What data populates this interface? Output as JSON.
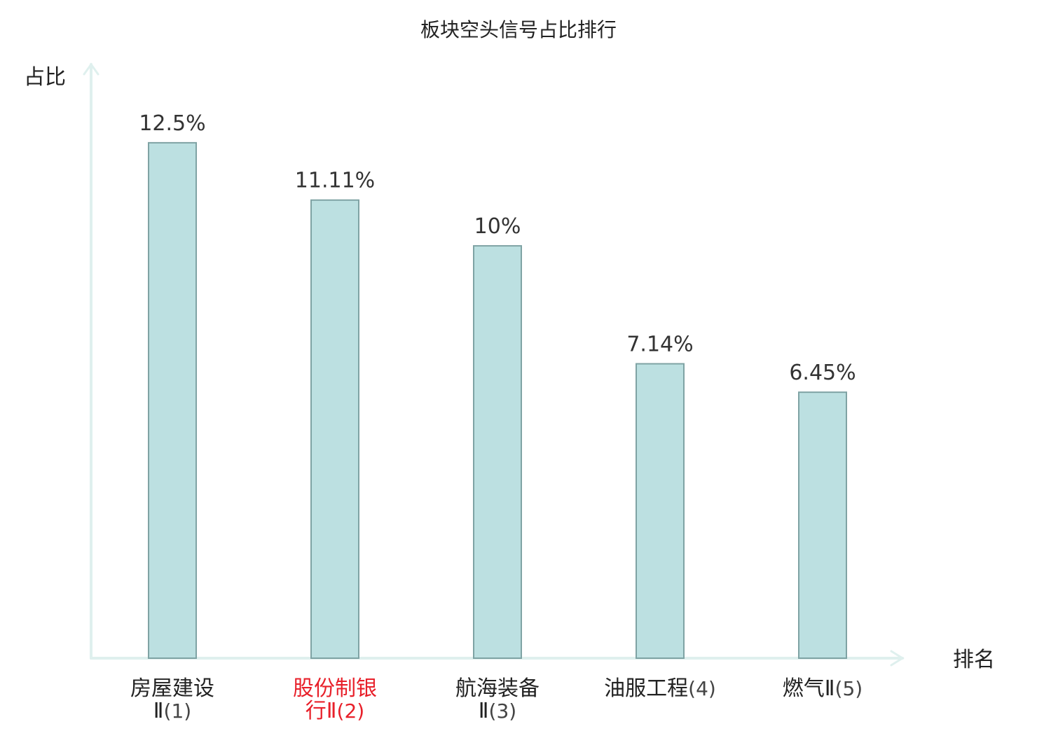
{
  "chart_data": {
    "type": "bar",
    "title": "板块空头信号占比排行",
    "ylabel": "占比",
    "xlabel": "排名",
    "ylim": [
      0,
      14.4
    ],
    "grid": false,
    "legend": "none",
    "categories": [
      {
        "name_lines": [
          "房屋建设",
          "Ⅱ"
        ],
        "rank": "(1)",
        "highlight": false
      },
      {
        "name_lines": [
          "股份制银",
          "行Ⅱ"
        ],
        "rank": "(2)",
        "highlight": true
      },
      {
        "name_lines": [
          "航海装备",
          "Ⅱ"
        ],
        "rank": "(3)",
        "highlight": false
      },
      {
        "name_lines": [
          "油服工程"
        ],
        "rank": "(4)",
        "highlight": false
      },
      {
        "name_lines": [
          "燃气Ⅱ"
        ],
        "rank": "(5)",
        "highlight": false
      }
    ],
    "values": [
      12.5,
      11.11,
      10,
      7.14,
      6.45
    ],
    "value_labels": [
      "12.5%",
      "11.11%",
      "10%",
      "7.14%",
      "6.45%"
    ],
    "colors": {
      "bar_fill": "#bce0e1",
      "bar_stroke": "#7fa3a4",
      "axis": "#dff0ee",
      "text": "#333333",
      "highlight": "#e8202a"
    }
  }
}
